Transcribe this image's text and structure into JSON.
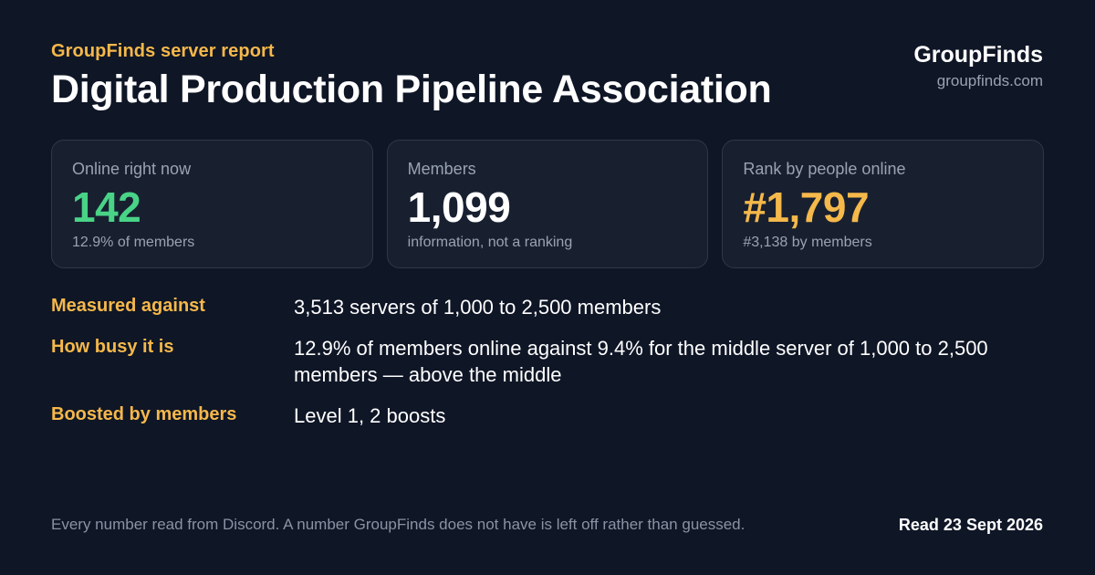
{
  "header": {
    "eyebrow": "GroupFinds server report",
    "title": "Digital Production Pipeline Association"
  },
  "brand": {
    "name": "GroupFinds",
    "url": "groupfinds.com"
  },
  "cards": [
    {
      "label": "Online right now",
      "value": "142",
      "sub": "12.9% of members",
      "color": "#49d387"
    },
    {
      "label": "Members",
      "value": "1,099",
      "sub": "information, not a ranking",
      "color": "#ffffff"
    },
    {
      "label": "Rank by people online",
      "value": "#1,797",
      "sub": "#3,138 by members",
      "color": "#f5b84a"
    }
  ],
  "facts": [
    {
      "label": "Measured against",
      "value": "3,513 servers of 1,000 to 2,500 members"
    },
    {
      "label": "How busy it is",
      "value": "12.9% of members online against 9.4% for the middle server of 1,000 to 2,500 members — above the middle"
    },
    {
      "label": "Boosted by members",
      "value": "Level 1, 2 boosts"
    }
  ],
  "footer": {
    "note": "Every number read from Discord. A number GroupFinds does not have is left off rather than guessed.",
    "date": "Read 23 Sept 2026"
  },
  "colors": {
    "background": "#0f1626",
    "card_background": "#182030",
    "accent": "#f5b84a",
    "online": "#49d387",
    "muted_text": "#9aa3b2"
  }
}
